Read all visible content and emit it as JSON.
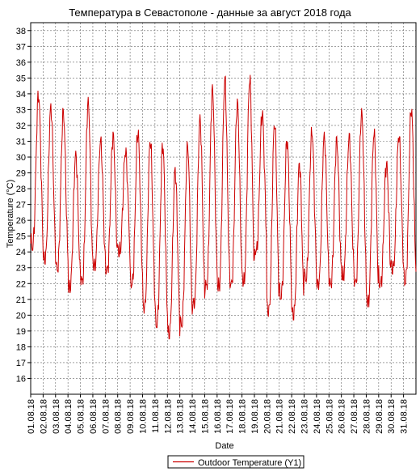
{
  "chart_data": {
    "type": "line",
    "title": "Температура в Севастополе - данные за август 2018 года",
    "xlabel": "Date",
    "ylabel": "Temperature (°C)",
    "ylim": [
      15,
      38.5
    ],
    "xlim": [
      1.0,
      32.0
    ],
    "grid": true,
    "legend_position": "bottom",
    "y_ticks": [
      16,
      17,
      18,
      19,
      20,
      21,
      22,
      23,
      24,
      25,
      26,
      27,
      28,
      29,
      30,
      31,
      32,
      33,
      34,
      35,
      36,
      37,
      38
    ],
    "x_tick_labels": [
      "01.08.18",
      "02.08.18",
      "03.08.18",
      "04.08.18",
      "05.08.18",
      "06.08.18",
      "07.08.18",
      "08.08.18",
      "09.08.18",
      "10.08.18",
      "11.08.18",
      "12.08.18",
      "13.08.18",
      "14.08.18",
      "15.08.18",
      "16.08.18",
      "17.08.18",
      "18.08.18",
      "19.08.18",
      "20.08.18",
      "21.08.18",
      "22.08.18",
      "23.08.18",
      "24.08.18",
      "25.08.18",
      "26.08.18",
      "27.08.18",
      "28.08.18",
      "29.08.18",
      "30.08.18",
      "31.08.18"
    ],
    "series": [
      {
        "name": "Outdoor Temperature (Y1)",
        "color": "#cc0000",
        "daily": [
          {
            "day": 1,
            "min": 24.3,
            "max": 34.0
          },
          {
            "day": 2,
            "min": 23.4,
            "max": 33.2
          },
          {
            "day": 3,
            "min": 22.9,
            "max": 32.9
          },
          {
            "day": 4,
            "min": 21.6,
            "max": 30.2
          },
          {
            "day": 5,
            "min": 22.1,
            "max": 33.6
          },
          {
            "day": 6,
            "min": 23.0,
            "max": 31.1
          },
          {
            "day": 7,
            "min": 22.8,
            "max": 31.4
          },
          {
            "day": 8,
            "min": 23.9,
            "max": 30.4
          },
          {
            "day": 9,
            "min": 21.9,
            "max": 31.6
          },
          {
            "day": 10,
            "min": 20.3,
            "max": 31.1
          },
          {
            "day": 11,
            "min": 19.4,
            "max": 30.8
          },
          {
            "day": 12,
            "min": 18.7,
            "max": 29.2
          },
          {
            "day": 13,
            "min": 19.4,
            "max": 30.8
          },
          {
            "day": 14,
            "min": 20.6,
            "max": 32.5
          },
          {
            "day": 15,
            "min": 21.8,
            "max": 34.4
          },
          {
            "day": 16,
            "min": 21.7,
            "max": 34.9
          },
          {
            "day": 17,
            "min": 21.9,
            "max": 33.5
          },
          {
            "day": 18,
            "min": 22.0,
            "max": 35.0
          },
          {
            "day": 19,
            "min": 24.0,
            "max": 32.8
          },
          {
            "day": 20,
            "min": 20.1,
            "max": 32.2
          },
          {
            "day": 21,
            "min": 21.2,
            "max": 31.1
          },
          {
            "day": 22,
            "min": 19.9,
            "max": 29.6
          },
          {
            "day": 23,
            "min": 22.3,
            "max": 31.7
          },
          {
            "day": 24,
            "min": 21.8,
            "max": 31.4
          },
          {
            "day": 25,
            "min": 21.9,
            "max": 31.1
          },
          {
            "day": 26,
            "min": 22.4,
            "max": 31.3
          },
          {
            "day": 27,
            "min": 22.0,
            "max": 32.9
          },
          {
            "day": 28,
            "min": 20.7,
            "max": 31.6
          },
          {
            "day": 29,
            "min": 21.9,
            "max": 29.6
          },
          {
            "day": 30,
            "min": 22.8,
            "max": 31.4
          },
          {
            "day": 31,
            "min": 22.1,
            "max": 33.1
          }
        ]
      }
    ]
  }
}
